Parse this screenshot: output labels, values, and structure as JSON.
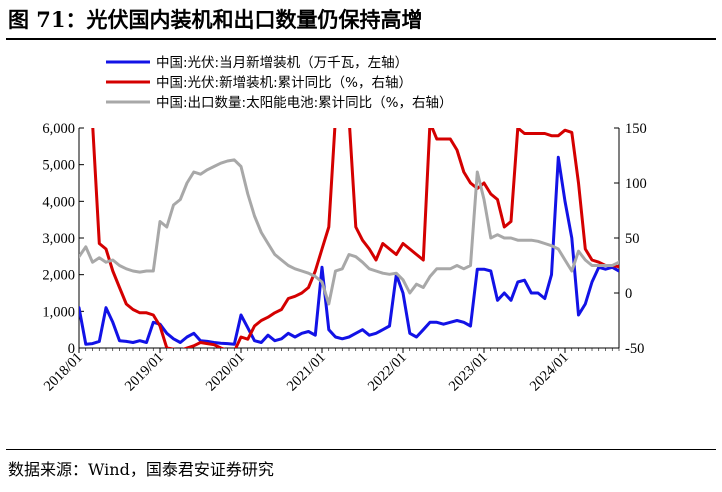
{
  "figure_title": "图 71：光伏国内装机和出口数量仍保持高增",
  "source_note": "数据来源：Wind，国泰君安证券研究",
  "colors": {
    "blue": "#1212e6",
    "red": "#d40000",
    "gray": "#a8a8a8"
  },
  "chart_data": {
    "type": "line",
    "title": "",
    "xlabel": "",
    "ylabel": "",
    "x_tick_labels": [
      "2018/01",
      "2019/01",
      "2020/01",
      "2021/01",
      "2022/01",
      "2023/01",
      "2024/01"
    ],
    "x_range": [
      "2018/01",
      "2024/09"
    ],
    "left_axis": {
      "range": [
        0,
        6000
      ],
      "ticks": [
        "0",
        "1,000",
        "2,000",
        "3,000",
        "4,000",
        "5,000",
        "6,000"
      ]
    },
    "right_axis": {
      "range": [
        -50,
        150
      ],
      "ticks": [
        "-50",
        "0",
        "50",
        "100",
        "150"
      ]
    },
    "legend_position": "top",
    "series": [
      {
        "name": "中国:光伏:当月新增装机（万千瓦，左轴）",
        "axis": "left",
        "color": "#1212e6",
        "points": [
          [
            "2018/01",
            1100
          ],
          [
            "2018/02",
            100
          ],
          [
            "2018/03",
            120
          ],
          [
            "2018/04",
            180
          ],
          [
            "2018/05",
            1100
          ],
          [
            "2018/06",
            700
          ],
          [
            "2018/07",
            200
          ],
          [
            "2018/08",
            180
          ],
          [
            "2018/09",
            150
          ],
          [
            "2018/10",
            200
          ],
          [
            "2018/11",
            150
          ],
          [
            "2018/12",
            700
          ],
          [
            "2019/01",
            650
          ],
          [
            "2019/02",
            400
          ],
          [
            "2019/03",
            250
          ],
          [
            "2019/04",
            150
          ],
          [
            "2019/05",
            300
          ],
          [
            "2019/06",
            400
          ],
          [
            "2019/07",
            200
          ],
          [
            "2019/08",
            180
          ],
          [
            "2019/09",
            150
          ],
          [
            "2019/10",
            130
          ],
          [
            "2019/11",
            120
          ],
          [
            "2019/12",
            100
          ],
          [
            "2020/01",
            900
          ],
          [
            "2020/02",
            550
          ],
          [
            "2020/03",
            200
          ],
          [
            "2020/04",
            150
          ],
          [
            "2020/05",
            350
          ],
          [
            "2020/06",
            200
          ],
          [
            "2020/07",
            250
          ],
          [
            "2020/08",
            400
          ],
          [
            "2020/09",
            300
          ],
          [
            "2020/10",
            400
          ],
          [
            "2020/11",
            450
          ],
          [
            "2020/12",
            350
          ],
          [
            "2021/01",
            2200
          ],
          [
            "2021/02",
            500
          ],
          [
            "2021/03",
            300
          ],
          [
            "2021/04",
            250
          ],
          [
            "2021/05",
            300
          ],
          [
            "2021/06",
            400
          ],
          [
            "2021/07",
            500
          ],
          [
            "2021/08",
            350
          ],
          [
            "2021/09",
            400
          ],
          [
            "2021/10",
            500
          ],
          [
            "2021/11",
            600
          ],
          [
            "2021/12",
            2000
          ],
          [
            "2022/01",
            1500
          ],
          [
            "2022/02",
            400
          ],
          [
            "2022/03",
            300
          ],
          [
            "2022/04",
            500
          ],
          [
            "2022/05",
            700
          ],
          [
            "2022/06",
            700
          ],
          [
            "2022/07",
            650
          ],
          [
            "2022/08",
            700
          ],
          [
            "2022/09",
            750
          ],
          [
            "2022/10",
            700
          ],
          [
            "2022/11",
            600
          ],
          [
            "2022/12",
            2150
          ],
          [
            "2023/01",
            2150
          ],
          [
            "2023/02",
            2100
          ],
          [
            "2023/03",
            1300
          ],
          [
            "2023/04",
            1500
          ],
          [
            "2023/05",
            1300
          ],
          [
            "2023/06",
            1800
          ],
          [
            "2023/07",
            1850
          ],
          [
            "2023/08",
            1500
          ],
          [
            "2023/09",
            1500
          ],
          [
            "2023/10",
            1350
          ],
          [
            "2023/11",
            2000
          ],
          [
            "2023/12",
            5200
          ],
          [
            "2024/01",
            4000
          ],
          [
            "2024/02",
            3000
          ],
          [
            "2024/03",
            900
          ],
          [
            "2024/04",
            1200
          ],
          [
            "2024/05",
            1800
          ],
          [
            "2024/06",
            2200
          ],
          [
            "2024/07",
            2150
          ],
          [
            "2024/08",
            2200
          ],
          [
            "2024/09",
            2100
          ]
        ]
      },
      {
        "name": "中国:光伏:新增装机:累计同比（%，右轴）",
        "axis": "right",
        "color": "#d40000",
        "points": [
          [
            "2018/01",
            170
          ],
          [
            "2018/03",
            155
          ],
          [
            "2018/04",
            45
          ],
          [
            "2018/05",
            40
          ],
          [
            "2018/06",
            20
          ],
          [
            "2018/07",
            5
          ],
          [
            "2018/08",
            -10
          ],
          [
            "2018/09",
            -15
          ],
          [
            "2018/10",
            -18
          ],
          [
            "2018/11",
            -18
          ],
          [
            "2018/12",
            -20
          ],
          [
            "2019/01",
            -30
          ],
          [
            "2019/02",
            -50
          ],
          [
            "2019/04",
            -52
          ],
          [
            "2019/05",
            -50
          ],
          [
            "2019/06",
            -48
          ],
          [
            "2019/07",
            -45
          ],
          [
            "2019/08",
            -46
          ],
          [
            "2019/09",
            -47
          ],
          [
            "2019/10",
            -50
          ],
          [
            "2019/11",
            -52
          ],
          [
            "2019/12",
            -53
          ],
          [
            "2020/01",
            -40
          ],
          [
            "2020/02",
            -42
          ],
          [
            "2020/03",
            -30
          ],
          [
            "2020/04",
            -25
          ],
          [
            "2020/05",
            -22
          ],
          [
            "2020/06",
            -18
          ],
          [
            "2020/07",
            -15
          ],
          [
            "2020/08",
            -5
          ],
          [
            "2020/09",
            -3
          ],
          [
            "2020/10",
            0
          ],
          [
            "2020/11",
            5
          ],
          [
            "2020/12",
            20
          ],
          [
            "2021/01",
            40
          ],
          [
            "2021/02",
            60
          ],
          [
            "2021/03",
            160
          ],
          [
            "2021/04",
            170
          ],
          [
            "2021/05",
            160
          ],
          [
            "2021/06",
            60
          ],
          [
            "2021/07",
            48
          ],
          [
            "2021/08",
            40
          ],
          [
            "2021/09",
            30
          ],
          [
            "2021/10",
            45
          ],
          [
            "2021/11",
            40
          ],
          [
            "2021/12",
            35
          ],
          [
            "2022/01",
            45
          ],
          [
            "2022/02",
            40
          ],
          [
            "2022/03",
            35
          ],
          [
            "2022/04",
            30
          ],
          [
            "2022/05",
            155
          ],
          [
            "2022/06",
            140
          ],
          [
            "2022/07",
            140
          ],
          [
            "2022/08",
            140
          ],
          [
            "2022/09",
            130
          ],
          [
            "2022/10",
            110
          ],
          [
            "2022/11",
            100
          ],
          [
            "2022/12",
            95
          ],
          [
            "2023/01",
            100
          ],
          [
            "2023/02",
            90
          ],
          [
            "2023/03",
            85
          ],
          [
            "2023/04",
            60
          ],
          [
            "2023/05",
            65
          ],
          [
            "2023/06",
            150
          ],
          [
            "2023/07",
            145
          ],
          [
            "2023/08",
            145
          ],
          [
            "2023/09",
            145
          ],
          [
            "2023/10",
            145
          ],
          [
            "2023/11",
            143
          ],
          [
            "2023/12",
            143
          ],
          [
            "2024/01",
            148
          ],
          [
            "2024/02",
            146
          ],
          [
            "2024/03",
            100
          ],
          [
            "2024/04",
            40
          ],
          [
            "2024/05",
            30
          ],
          [
            "2024/06",
            28
          ],
          [
            "2024/07",
            25
          ],
          [
            "2024/08",
            25
          ],
          [
            "2024/09",
            24
          ]
        ]
      },
      {
        "name": "中国:出口数量:太阳能电池:累计同比（%，右轴）",
        "axis": "right",
        "color": "#a8a8a8",
        "points": [
          [
            "2018/01",
            33
          ],
          [
            "2018/02",
            42
          ],
          [
            "2018/03",
            28
          ],
          [
            "2018/04",
            32
          ],
          [
            "2018/05",
            28
          ],
          [
            "2018/06",
            30
          ],
          [
            "2018/07",
            25
          ],
          [
            "2018/08",
            22
          ],
          [
            "2018/09",
            20
          ],
          [
            "2018/10",
            19
          ],
          [
            "2018/11",
            20
          ],
          [
            "2018/12",
            20
          ],
          [
            "2019/01",
            65
          ],
          [
            "2019/02",
            60
          ],
          [
            "2019/03",
            80
          ],
          [
            "2019/04",
            85
          ],
          [
            "2019/05",
            100
          ],
          [
            "2019/06",
            110
          ],
          [
            "2019/07",
            108
          ],
          [
            "2019/08",
            112
          ],
          [
            "2019/09",
            115
          ],
          [
            "2019/10",
            118
          ],
          [
            "2019/11",
            120
          ],
          [
            "2019/12",
            121
          ],
          [
            "2020/01",
            115
          ],
          [
            "2020/02",
            90
          ],
          [
            "2020/03",
            70
          ],
          [
            "2020/04",
            55
          ],
          [
            "2020/05",
            45
          ],
          [
            "2020/06",
            35
          ],
          [
            "2020/07",
            30
          ],
          [
            "2020/08",
            25
          ],
          [
            "2020/09",
            22
          ],
          [
            "2020/10",
            20
          ],
          [
            "2020/11",
            18
          ],
          [
            "2020/12",
            15
          ],
          [
            "2021/01",
            10
          ],
          [
            "2021/02",
            -10
          ],
          [
            "2021/03",
            20
          ],
          [
            "2021/04",
            22
          ],
          [
            "2021/05",
            35
          ],
          [
            "2021/06",
            33
          ],
          [
            "2021/07",
            28
          ],
          [
            "2021/08",
            22
          ],
          [
            "2021/09",
            20
          ],
          [
            "2021/10",
            18
          ],
          [
            "2021/11",
            17
          ],
          [
            "2021/12",
            18
          ],
          [
            "2022/01",
            12
          ],
          [
            "2022/02",
            0
          ],
          [
            "2022/03",
            8
          ],
          [
            "2022/04",
            5
          ],
          [
            "2022/05",
            15
          ],
          [
            "2022/06",
            22
          ],
          [
            "2022/07",
            22
          ],
          [
            "2022/08",
            22
          ],
          [
            "2022/09",
            25
          ],
          [
            "2022/10",
            22
          ],
          [
            "2022/11",
            25
          ],
          [
            "2022/12",
            110
          ],
          [
            "2023/01",
            85
          ],
          [
            "2023/02",
            50
          ],
          [
            "2023/03",
            53
          ],
          [
            "2023/04",
            50
          ],
          [
            "2023/05",
            50
          ],
          [
            "2023/06",
            48
          ],
          [
            "2023/07",
            48
          ],
          [
            "2023/08",
            48
          ],
          [
            "2023/09",
            47
          ],
          [
            "2023/10",
            45
          ],
          [
            "2023/11",
            43
          ],
          [
            "2023/12",
            40
          ],
          [
            "2024/01",
            30
          ],
          [
            "2024/02",
            20
          ],
          [
            "2024/03",
            38
          ],
          [
            "2024/04",
            30
          ],
          [
            "2024/05",
            25
          ],
          [
            "2024/06",
            25
          ],
          [
            "2024/07",
            25
          ],
          [
            "2024/08",
            25
          ],
          [
            "2024/09",
            28
          ]
        ]
      }
    ]
  }
}
